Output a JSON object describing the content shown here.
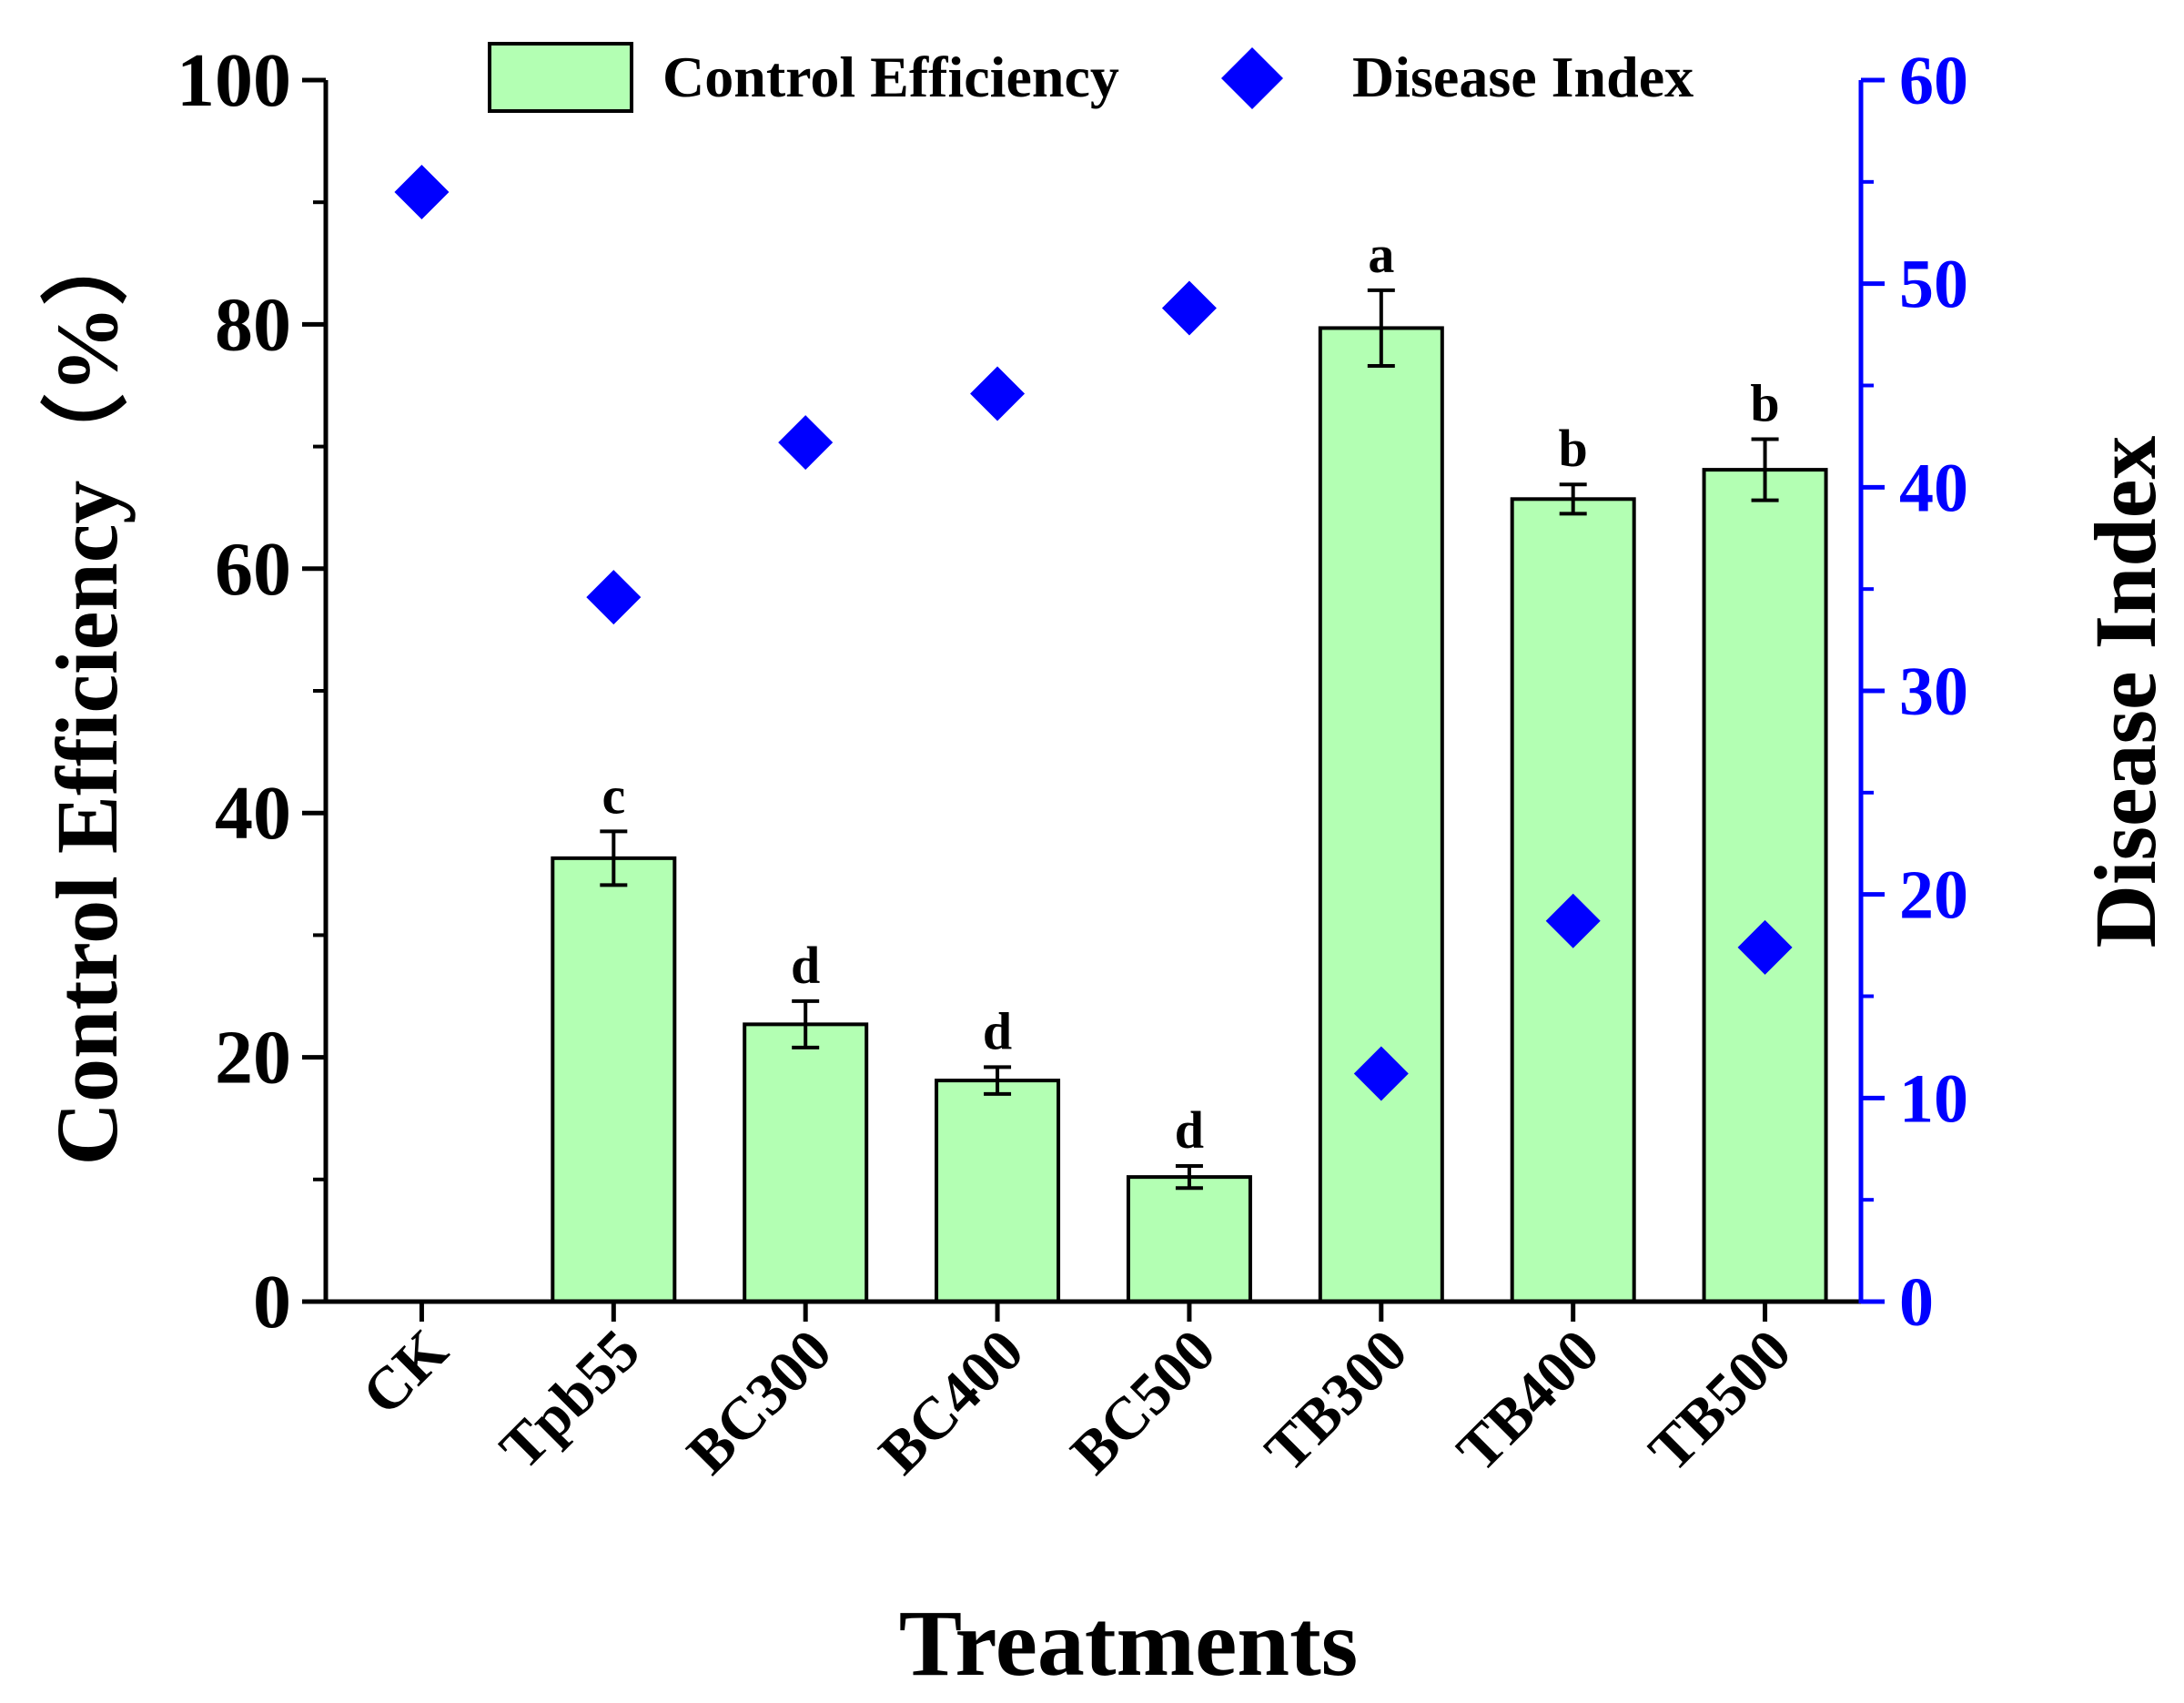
{
  "chart_data": {
    "type": "bar",
    "categories": [
      "CK",
      "Tpb55",
      "BC300",
      "BC400",
      "BC500",
      "TB300",
      "TB400",
      "TB500"
    ],
    "xlabel": "Treatments",
    "ylabel_left": "Control Efficiency（%）",
    "ylabel_right": "Disease Index",
    "ylim_left": [
      0,
      100
    ],
    "ylim_right": [
      0,
      60
    ],
    "yticks_left": [
      "0",
      "20",
      "40",
      "60",
      "80",
      "100"
    ],
    "yticks_right": [
      "0",
      "10",
      "20",
      "30",
      "40",
      "50",
      "60"
    ],
    "legend_position": "top",
    "series": [
      {
        "name": "Control Efficiency",
        "kind": "bar",
        "axis": "left",
        "color": "#b3ffb3",
        "values": [
          0,
          36.3,
          22.7,
          18.1,
          10.2,
          79.7,
          65.7,
          68.1
        ],
        "errors": [
          0,
          2.2,
          1.9,
          1.1,
          0.9,
          3.1,
          1.2,
          2.5
        ],
        "labels": [
          "",
          "c",
          "d",
          "d",
          "d",
          "a",
          "b",
          "b"
        ]
      },
      {
        "name": "Disease Index",
        "kind": "scatter",
        "axis": "right",
        "color": "#0000ff",
        "values": [
          54.5,
          34.6,
          42.2,
          44.6,
          48.8,
          11.2,
          18.7,
          17.4
        ]
      }
    ]
  }
}
